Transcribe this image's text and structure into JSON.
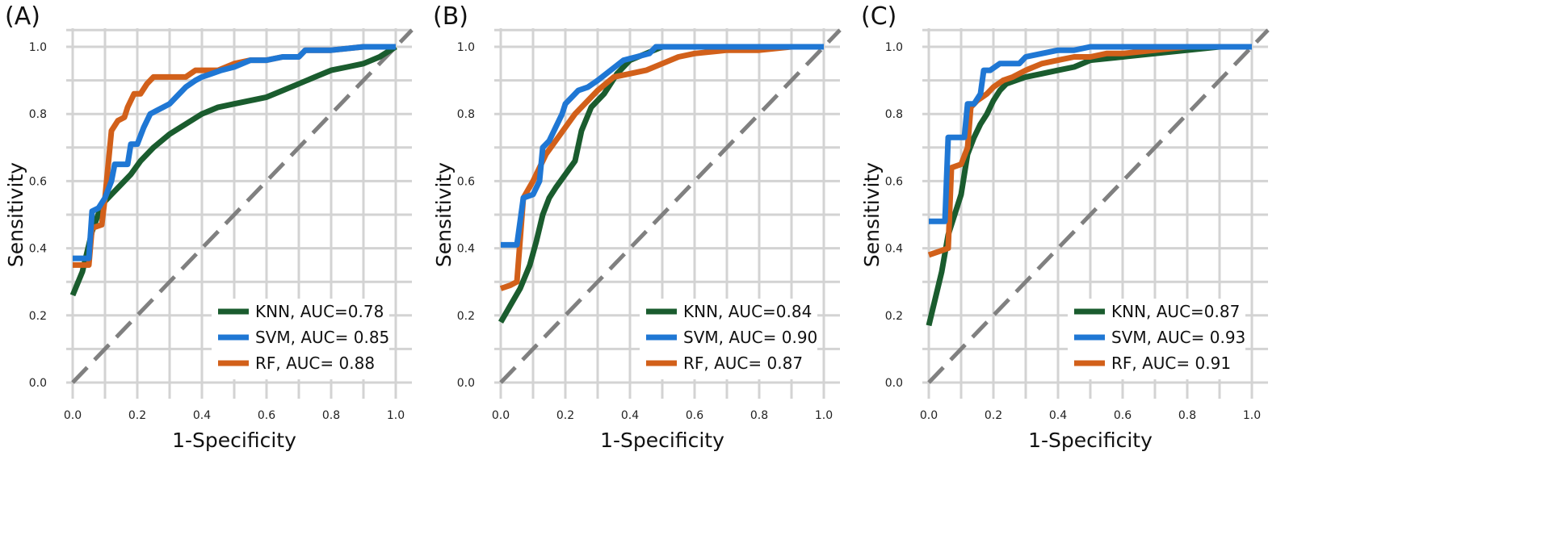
{
  "chart_data": [
    {
      "type": "line",
      "panel_label": "(A)",
      "xlabel": "1-Specificity",
      "ylabel": "Sensitivity",
      "xlim": [
        0,
        1
      ],
      "ylim": [
        0,
        1
      ],
      "xticks": [
        "0.0",
        "0.2",
        "0.4",
        "0.6",
        "0.8",
        "1.0"
      ],
      "yticks": [
        "0.0",
        "0.2",
        "0.4",
        "0.6",
        "0.8",
        "1.0"
      ],
      "grid": true,
      "legend_position": "bottom-right",
      "series": [
        {
          "name": "KNN, AUC=0.78",
          "color": "#1a5c2e",
          "x": [
            0,
            0.03,
            0.06,
            0.09,
            0.12,
            0.15,
            0.18,
            0.21,
            0.25,
            0.3,
            0.35,
            0.4,
            0.45,
            0.5,
            0.55,
            0.6,
            0.65,
            0.7,
            0.75,
            0.8,
            0.85,
            0.9,
            0.95,
            1.0
          ],
          "y": [
            0.26,
            0.33,
            0.45,
            0.53,
            0.56,
            0.59,
            0.62,
            0.66,
            0.7,
            0.74,
            0.77,
            0.8,
            0.82,
            0.83,
            0.84,
            0.85,
            0.87,
            0.89,
            0.91,
            0.93,
            0.94,
            0.95,
            0.97,
            1.0
          ]
        },
        {
          "name": "SVM, AUC= 0.85",
          "color": "#1f77d4",
          "x": [
            0,
            0.02,
            0.05,
            0.06,
            0.08,
            0.1,
            0.12,
            0.13,
            0.15,
            0.17,
            0.18,
            0.2,
            0.22,
            0.24,
            0.26,
            0.28,
            0.3,
            0.33,
            0.35,
            0.38,
            0.4,
            0.43,
            0.46,
            0.5,
            0.55,
            0.6,
            0.65,
            0.7,
            0.72,
            0.8,
            0.9,
            0.95,
            1.0
          ],
          "y": [
            0.37,
            0.37,
            0.37,
            0.51,
            0.52,
            0.55,
            0.6,
            0.65,
            0.65,
            0.65,
            0.71,
            0.71,
            0.76,
            0.8,
            0.81,
            0.82,
            0.83,
            0.86,
            0.88,
            0.9,
            0.91,
            0.92,
            0.93,
            0.94,
            0.96,
            0.96,
            0.97,
            0.97,
            0.99,
            0.99,
            1.0,
            1.0,
            1.0
          ]
        },
        {
          "name": "RF, AUC= 0.88",
          "color": "#d2601a",
          "x": [
            0,
            0.03,
            0.05,
            0.06,
            0.09,
            0.1,
            0.12,
            0.14,
            0.16,
            0.17,
            0.19,
            0.21,
            0.23,
            0.25,
            0.3,
            0.35,
            0.38,
            0.45,
            0.5,
            0.55,
            0.6,
            0.65,
            0.7,
            0.72,
            0.8,
            0.9,
            1.0
          ],
          "y": [
            0.35,
            0.35,
            0.35,
            0.46,
            0.47,
            0.55,
            0.75,
            0.78,
            0.79,
            0.82,
            0.86,
            0.86,
            0.89,
            0.91,
            0.91,
            0.91,
            0.93,
            0.93,
            0.95,
            0.96,
            0.96,
            0.97,
            0.97,
            0.99,
            0.99,
            1.0,
            1.0
          ]
        }
      ]
    },
    {
      "type": "line",
      "panel_label": "(B)",
      "xlabel": "1-Specificity",
      "ylabel": "Sensitivity",
      "xlim": [
        0,
        1
      ],
      "ylim": [
        0,
        1
      ],
      "xticks": [
        "0.0",
        "0.2",
        "0.4",
        "0.6",
        "0.8",
        "1.0"
      ],
      "yticks": [
        "0.0",
        "0.2",
        "0.4",
        "0.6",
        "0.8",
        "1.0"
      ],
      "grid": true,
      "legend_position": "bottom-right",
      "series": [
        {
          "name": "KNN, AUC=0.84",
          "color": "#1a5c2e",
          "x": [
            0,
            0.03,
            0.06,
            0.09,
            0.11,
            0.13,
            0.15,
            0.17,
            0.2,
            0.23,
            0.25,
            0.28,
            0.32,
            0.36,
            0.4,
            0.45,
            0.5,
            0.6,
            0.7,
            0.8,
            0.9,
            1.0
          ],
          "y": [
            0.18,
            0.23,
            0.28,
            0.35,
            0.42,
            0.5,
            0.55,
            0.58,
            0.62,
            0.66,
            0.75,
            0.82,
            0.86,
            0.92,
            0.96,
            0.98,
            1.0,
            1.0,
            1.0,
            1.0,
            1.0,
            1.0
          ]
        },
        {
          "name": "SVM, AUC= 0.90",
          "color": "#1f77d4",
          "x": [
            0,
            0.02,
            0.05,
            0.07,
            0.1,
            0.12,
            0.13,
            0.15,
            0.17,
            0.19,
            0.2,
            0.22,
            0.24,
            0.27,
            0.3,
            0.34,
            0.38,
            0.42,
            0.46,
            0.48,
            0.6,
            0.8,
            1.0
          ],
          "y": [
            0.41,
            0.41,
            0.41,
            0.55,
            0.56,
            0.6,
            0.7,
            0.72,
            0.76,
            0.8,
            0.83,
            0.85,
            0.87,
            0.88,
            0.9,
            0.93,
            0.96,
            0.97,
            0.98,
            1.0,
            1.0,
            1.0,
            1.0
          ]
        },
        {
          "name": "RF, AUC= 0.87",
          "color": "#d2601a",
          "x": [
            0,
            0.03,
            0.05,
            0.07,
            0.1,
            0.12,
            0.14,
            0.17,
            0.2,
            0.23,
            0.26,
            0.3,
            0.35,
            0.4,
            0.45,
            0.5,
            0.55,
            0.6,
            0.7,
            0.8,
            0.9,
            1.0
          ],
          "y": [
            0.28,
            0.29,
            0.3,
            0.55,
            0.6,
            0.64,
            0.68,
            0.72,
            0.76,
            0.8,
            0.83,
            0.87,
            0.91,
            0.92,
            0.93,
            0.95,
            0.97,
            0.98,
            0.99,
            0.99,
            1.0,
            1.0
          ]
        }
      ]
    },
    {
      "type": "line",
      "panel_label": "(C)",
      "xlabel": "1-Specificity",
      "ylabel": "Sensitivity",
      "xlim": [
        0,
        1
      ],
      "ylim": [
        0,
        1
      ],
      "xticks": [
        "0.0",
        "0.2",
        "0.4",
        "0.6",
        "0.8",
        "1.0"
      ],
      "yticks": [
        "0.0",
        "0.2",
        "0.4",
        "0.6",
        "0.8",
        "1.0"
      ],
      "grid": true,
      "legend_position": "bottom-right",
      "series": [
        {
          "name": "KNN, AUC=0.87",
          "color": "#1a5c2e",
          "x": [
            0,
            0.02,
            0.04,
            0.06,
            0.08,
            0.1,
            0.12,
            0.14,
            0.16,
            0.18,
            0.2,
            0.22,
            0.24,
            0.27,
            0.3,
            0.35,
            0.4,
            0.45,
            0.5,
            0.6,
            0.7,
            0.8,
            0.9,
            1.0
          ],
          "y": [
            0.17,
            0.25,
            0.33,
            0.44,
            0.5,
            0.56,
            0.68,
            0.73,
            0.77,
            0.8,
            0.84,
            0.87,
            0.89,
            0.9,
            0.91,
            0.92,
            0.93,
            0.94,
            0.96,
            0.97,
            0.98,
            0.99,
            1.0,
            1.0
          ]
        },
        {
          "name": "SVM, AUC= 0.93",
          "color": "#1f77d4",
          "x": [
            0,
            0.03,
            0.05,
            0.06,
            0.09,
            0.11,
            0.12,
            0.14,
            0.16,
            0.17,
            0.19,
            0.22,
            0.25,
            0.28,
            0.3,
            0.35,
            0.4,
            0.45,
            0.5,
            0.6,
            0.8,
            1.0
          ],
          "y": [
            0.48,
            0.48,
            0.48,
            0.73,
            0.73,
            0.73,
            0.83,
            0.83,
            0.86,
            0.93,
            0.93,
            0.95,
            0.95,
            0.95,
            0.97,
            0.98,
            0.99,
            0.99,
            1.0,
            1.0,
            1.0,
            1.0
          ]
        },
        {
          "name": "RF, AUC= 0.91",
          "color": "#d2601a",
          "x": [
            0,
            0.03,
            0.06,
            0.07,
            0.1,
            0.12,
            0.13,
            0.15,
            0.18,
            0.2,
            0.23,
            0.26,
            0.3,
            0.35,
            0.4,
            0.45,
            0.5,
            0.55,
            0.6,
            0.7,
            0.8,
            0.9,
            1.0
          ],
          "y": [
            0.38,
            0.39,
            0.4,
            0.64,
            0.65,
            0.7,
            0.82,
            0.84,
            0.86,
            0.88,
            0.9,
            0.91,
            0.93,
            0.95,
            0.96,
            0.97,
            0.97,
            0.98,
            0.98,
            0.99,
            1.0,
            1.0,
            1.0
          ]
        }
      ]
    }
  ]
}
